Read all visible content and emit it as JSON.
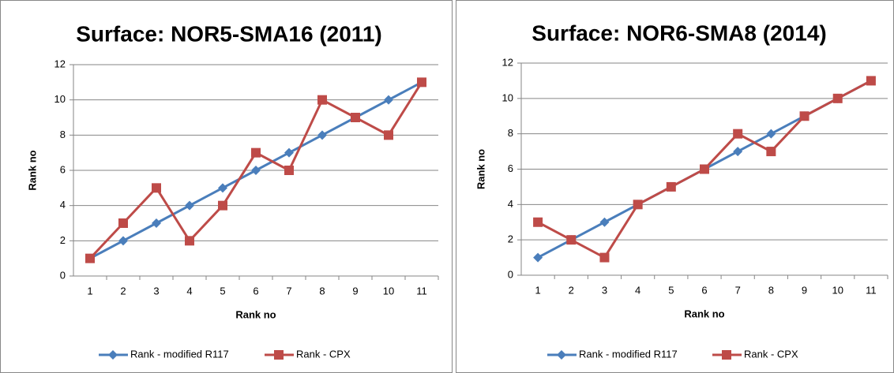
{
  "chart_data": [
    {
      "type": "line",
      "title": "Surface: NOR5-SMA16 (2011)",
      "x_label": "Rank no",
      "y_label": "Rank no",
      "categories": [
        1,
        2,
        3,
        4,
        5,
        6,
        7,
        8,
        9,
        10,
        11
      ],
      "series": [
        {
          "name": "Rank - modified R117",
          "color": "#4a7ebb",
          "marker": "diamond",
          "values": [
            1,
            2,
            3,
            4,
            5,
            6,
            7,
            8,
            9,
            10,
            11
          ]
        },
        {
          "name": "Rank - CPX",
          "color": "#be4b48",
          "marker": "square",
          "values": [
            1,
            3,
            5,
            2,
            4,
            7,
            6,
            10,
            9,
            8,
            11
          ]
        }
      ],
      "ylim": [
        0,
        12
      ],
      "yticks": [
        0,
        2,
        4,
        6,
        8,
        10,
        12
      ],
      "grid": true,
      "legend": "bottom"
    },
    {
      "type": "line",
      "title": "Surface: NOR6-SMA8 (2014)",
      "x_label": "Rank no",
      "y_label": "Rank no",
      "categories": [
        1,
        2,
        3,
        4,
        5,
        6,
        7,
        8,
        9,
        10,
        11
      ],
      "series": [
        {
          "name": "Rank - modified R117",
          "color": "#4a7ebb",
          "marker": "diamond",
          "values": [
            1,
            2,
            3,
            4,
            5,
            6,
            7,
            8,
            9,
            10,
            11
          ]
        },
        {
          "name": "Rank - CPX",
          "color": "#be4b48",
          "marker": "square",
          "values": [
            3,
            2,
            1,
            4,
            5,
            6,
            8,
            7,
            9,
            10,
            11
          ]
        }
      ],
      "ylim": [
        0,
        12
      ],
      "yticks": [
        0,
        2,
        4,
        6,
        8,
        10,
        12
      ],
      "grid": true,
      "legend": "bottom"
    }
  ]
}
